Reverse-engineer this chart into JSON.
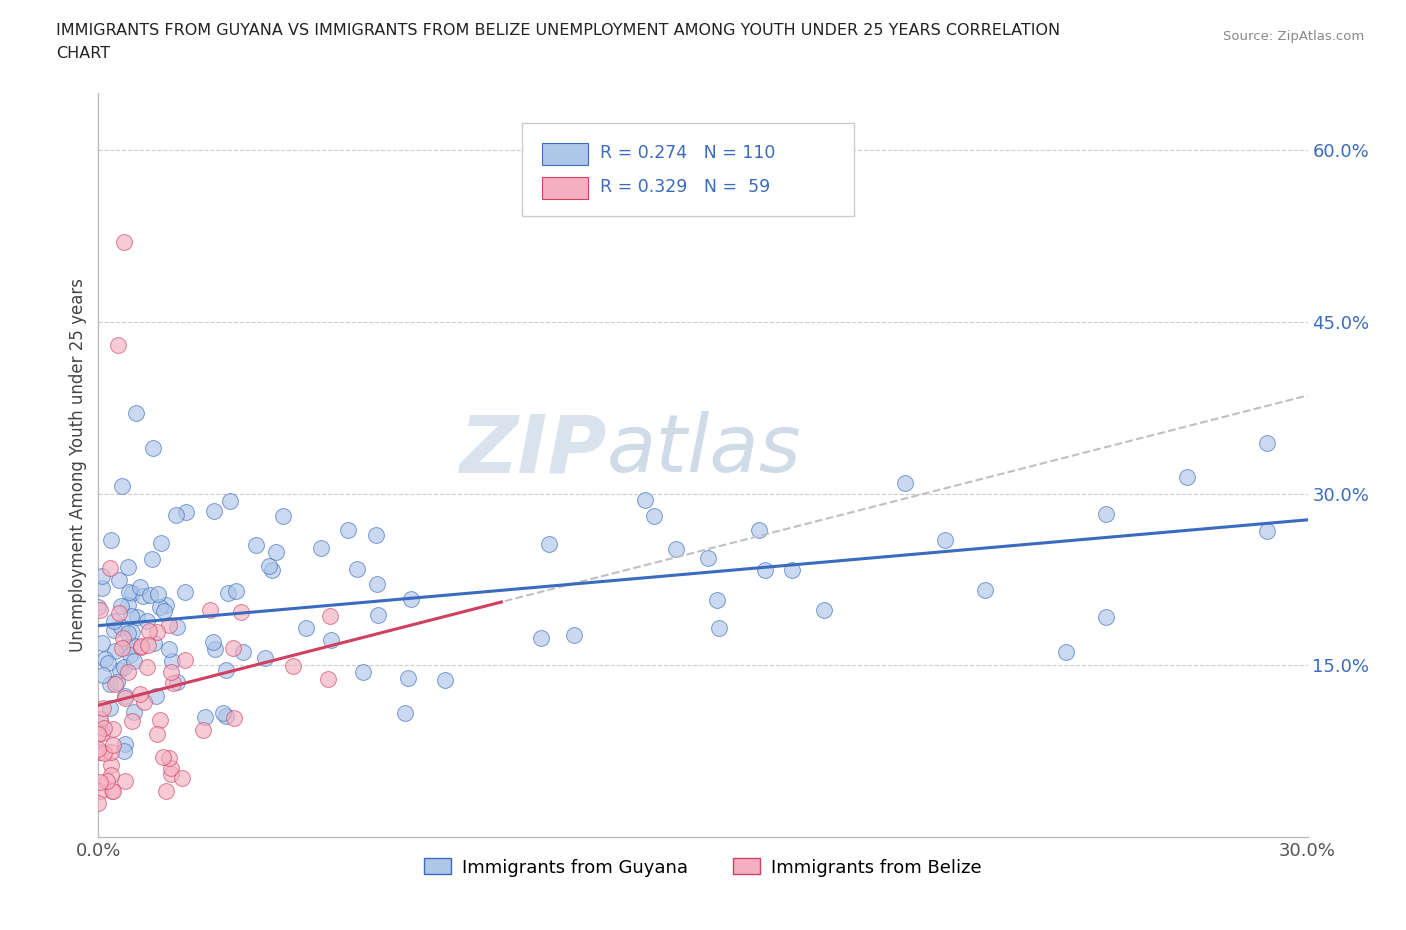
{
  "title_line1": "IMMIGRANTS FROM GUYANA VS IMMIGRANTS FROM BELIZE UNEMPLOYMENT AMONG YOUTH UNDER 25 YEARS CORRELATION",
  "title_line2": "CHART",
  "source": "Source: ZipAtlas.com",
  "ylabel": "Unemployment Among Youth under 25 years",
  "legend_bottom": [
    "Immigrants from Guyana",
    "Immigrants from Belize"
  ],
  "R_guyana": 0.274,
  "N_guyana": 110,
  "R_belize": 0.329,
  "N_belize": 59,
  "xlim": [
    0.0,
    0.3
  ],
  "ylim": [
    0.0,
    0.65
  ],
  "xticks": [
    0.0,
    0.05,
    0.1,
    0.15,
    0.2,
    0.25,
    0.3
  ],
  "yticks": [
    0.0,
    0.15,
    0.3,
    0.45,
    0.6
  ],
  "ytick_labels": [
    "",
    "15.0%",
    "30.0%",
    "45.0%",
    "60.0%"
  ],
  "xtick_labels": [
    "0.0%",
    "",
    "",
    "",
    "",
    "",
    "30.0%"
  ],
  "color_guyana": "#aec6e8",
  "color_belize": "#f4b0c0",
  "line_color_guyana": "#3a6bbf",
  "line_color_belize": "#d04060",
  "background_color": "#ffffff",
  "grid_color": "#cccccc",
  "watermark_zip": "ZIP",
  "watermark_atlas": "atlas",
  "watermark_color_zip": "#c8d8e8",
  "watermark_color_atlas": "#a0b8d0"
}
